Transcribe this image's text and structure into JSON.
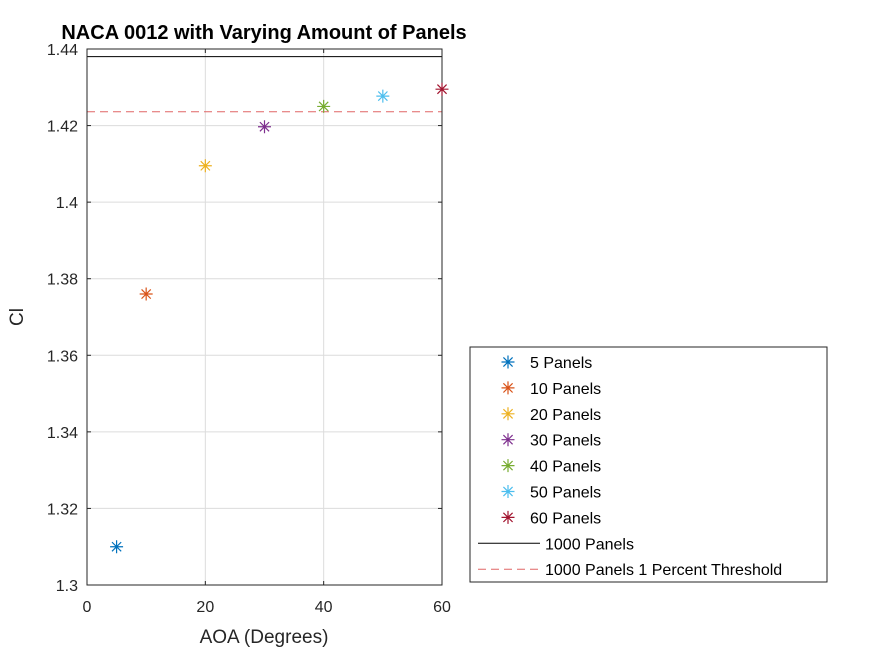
{
  "chart_data": {
    "type": "scatter",
    "title": "NACA 0012 with Varying Amount of Panels",
    "xlabel": "AOA (Degrees)",
    "ylabel": "Cl",
    "xlim": [
      0,
      60
    ],
    "ylim": [
      1.3,
      1.44
    ],
    "xticks": [
      "0",
      "20",
      "40",
      "60"
    ],
    "yticks": [
      "1.3",
      "1.32",
      "1.34",
      "1.36",
      "1.38",
      "1.4",
      "1.42",
      "1.44"
    ],
    "grid": true,
    "marker": "asterisk",
    "legend_location": "bottom-right, outside axes",
    "series": [
      {
        "name": "5 Panels",
        "color": "#0072BD",
        "x": [
          5
        ],
        "y": [
          1.31
        ]
      },
      {
        "name": "10 Panels",
        "color": "#D95319",
        "x": [
          10
        ],
        "y": [
          1.376
        ]
      },
      {
        "name": "20 Panels",
        "color": "#EDB120",
        "x": [
          20
        ],
        "y": [
          1.4095
        ]
      },
      {
        "name": "30 Panels",
        "color": "#7E2F8E",
        "x": [
          30
        ],
        "y": [
          1.4197
        ]
      },
      {
        "name": "40 Panels",
        "color": "#77AC30",
        "x": [
          40
        ],
        "y": [
          1.425
        ]
      },
      {
        "name": "50 Panels",
        "color": "#4DBEEE",
        "x": [
          50
        ],
        "y": [
          1.4277
        ]
      },
      {
        "name": "60 Panels",
        "color": "#A2142F",
        "x": [
          60
        ],
        "y": [
          1.4295
        ]
      }
    ],
    "reference_lines": [
      {
        "name": "1000 Panels",
        "color": "#000000",
        "style": "solid",
        "y": 1.438
      },
      {
        "name": "1000 Panels 1 Percent Threshold",
        "color": "#E06666",
        "style": "dashed",
        "y": 1.4236
      }
    ]
  }
}
